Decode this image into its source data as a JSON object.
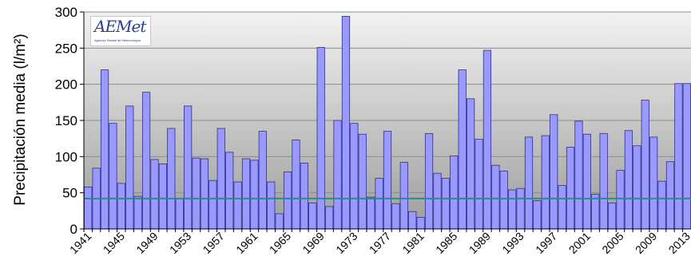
{
  "chart_data": {
    "type": "bar",
    "ylabel": "Precipitación media (l/m²)",
    "ylim": [
      0,
      300
    ],
    "yticks": [
      0,
      50,
      100,
      150,
      200,
      250,
      300
    ],
    "grid": true,
    "reference_line": 42,
    "categories": [
      "1941",
      "1942",
      "1943",
      "1944",
      "1945",
      "1946",
      "1947",
      "1948",
      "1949",
      "1950",
      "1951",
      "1952",
      "1953",
      "1954",
      "1955",
      "1956",
      "1957",
      "1958",
      "1959",
      "1960",
      "1961",
      "1962",
      "1963",
      "1964",
      "1965",
      "1966",
      "1967",
      "1968",
      "1969",
      "1970",
      "1971",
      "1972",
      "1973",
      "1974",
      "1975",
      "1976",
      "1977",
      "1978",
      "1979",
      "1980",
      "1981",
      "1982",
      "1983",
      "1984",
      "1985",
      "1986",
      "1987",
      "1988",
      "1989",
      "1990",
      "1991",
      "1992",
      "1993",
      "1994",
      "1995",
      "1996",
      "1997",
      "1998",
      "1999",
      "2000",
      "2001",
      "2002",
      "2003",
      "2004",
      "2005",
      "2006",
      "2007",
      "2008",
      "2009",
      "2010",
      "2011",
      "2012",
      "2013"
    ],
    "xtick_labels": [
      "1941",
      "1945",
      "1949",
      "1953",
      "1957",
      "1961",
      "1965",
      "1969",
      "1973",
      "1977",
      "1981",
      "1985",
      "1989",
      "1993",
      "1997",
      "2001",
      "2005",
      "2009",
      "2013"
    ],
    "values": [
      58,
      84,
      220,
      146,
      63,
      170,
      45,
      189,
      96,
      90,
      139,
      42,
      170,
      98,
      97,
      67,
      139,
      106,
      65,
      97,
      95,
      135,
      65,
      21,
      79,
      123,
      91,
      36,
      251,
      31,
      150,
      294,
      146,
      131,
      44,
      70,
      135,
      35,
      92,
      24,
      16,
      132,
      77,
      70,
      101,
      220,
      180,
      124,
      247,
      88,
      80,
      54,
      56,
      127,
      39,
      129,
      158,
      60,
      113,
      149,
      131,
      48,
      132,
      36,
      81,
      136,
      115,
      178,
      127,
      66,
      93,
      201,
      201
    ],
    "colors": {
      "bar_fill": "#9999ff",
      "bar_stroke": "#2e2e8f",
      "reference_line": "#2e8a8a",
      "grid": "#8c8c8c"
    }
  },
  "logo": {
    "text": "AEMet",
    "subtitle": "Agencia Estatal de Meteorología"
  }
}
